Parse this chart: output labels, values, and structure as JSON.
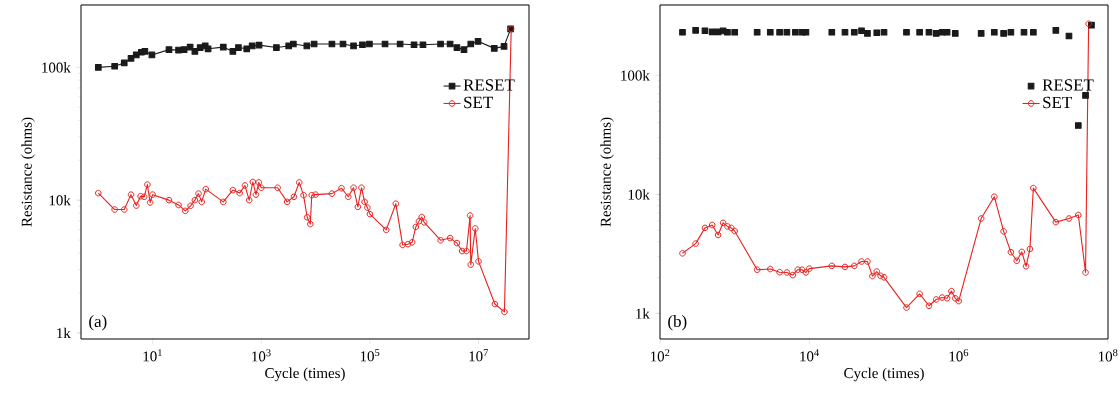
{
  "chart_data": [
    {
      "type": "line",
      "xlabel": "Cycle (times)",
      "ylabel": "Resistance (ohms)",
      "log": "xy",
      "legend": "top right",
      "annotations": [
        "(a)"
      ],
      "xlim": [
        0.48,
        85000000.0
      ],
      "ylim": [
        900,
        295000
      ],
      "xticks": [
        {
          "value": 10,
          "label": "10$^{1}$"
        },
        {
          "value": 1000,
          "label": "10$^{3}$"
        },
        {
          "value": 100000,
          "label": "10$^{5}$"
        },
        {
          "value": 10000000,
          "label": "10$^{7}$"
        }
      ],
      "yticks": [
        {
          "value": 1000,
          "label": "1k"
        },
        {
          "value": 10000,
          "label": "10k"
        },
        {
          "value": 100000,
          "label": "100k"
        }
      ],
      "series": [
        {
          "name": "RESET",
          "marker": "square",
          "color": "#1a1a1a",
          "x": [
            1,
            2,
            3,
            4,
            5,
            6.2,
            7.2,
            9.7,
            20,
            30,
            38,
            49,
            60,
            75,
            93,
            105,
            200,
            300,
            380,
            540,
            680,
            910,
            1900,
            3200,
            3900,
            6900,
            9400,
            20000,
            32000,
            50000,
            73000,
            98000,
            190000,
            360000,
            650000,
            950000,
            2000000,
            3000000,
            4000000,
            5400000,
            7200000,
            9800000,
            19500000,
            29500000,
            39000000
          ],
          "values": [
            100000,
            102000,
            108000,
            117000,
            124000,
            130000,
            132000,
            124000,
            136000,
            135000,
            136000,
            142000,
            132000,
            141000,
            145000,
            138000,
            142000,
            132000,
            141000,
            138000,
            145000,
            147000,
            141000,
            145000,
            150000,
            145000,
            150000,
            150000,
            150000,
            145000,
            148000,
            150000,
            150000,
            150000,
            148000,
            148000,
            150000,
            150000,
            141000,
            136000,
            150000,
            157000,
            139000,
            144000,
            195000
          ]
        },
        {
          "name": "SET",
          "marker": "circle",
          "color": "#e8201e",
          "x": [
            1,
            2,
            3,
            4,
            5,
            6,
            7,
            8,
            9,
            10,
            20,
            30,
            40,
            50,
            60,
            70,
            80,
            95,
            200,
            300,
            400,
            500,
            600,
            700,
            800,
            900,
            1000,
            2000,
            3000,
            4000,
            5000,
            6000,
            7000,
            8000,
            8500,
            10000,
            20000,
            30000,
            40000,
            50000,
            60000,
            70000,
            80000,
            90000,
            100000,
            200000,
            300000,
            400000,
            500000,
            600000,
            700000,
            800000,
            900000,
            1000000,
            2000000,
            3000000,
            4000000,
            5000000,
            6000000,
            7000000,
            7200000,
            8700000,
            10000000,
            20000000,
            30000000,
            40000000
          ],
          "values": [
            11300,
            8500,
            8500,
            11000,
            9100,
            10700,
            10600,
            13100,
            9600,
            11000,
            10000,
            9200,
            8300,
            9060,
            10000,
            11200,
            9700,
            12100,
            9700,
            11900,
            11300,
            12900,
            10000,
            13700,
            11000,
            13600,
            12400,
            12400,
            9700,
            10600,
            13600,
            10900,
            7430,
            6600,
            10900,
            11000,
            11200,
            12300,
            10600,
            12400,
            8900,
            12400,
            9700,
            8780,
            7850,
            5970,
            9400,
            4600,
            4660,
            4810,
            6280,
            6930,
            7470,
            6800,
            4990,
            5180,
            4750,
            4140,
            4140,
            7660,
            3270,
            6120,
            3460,
            1650,
            1440,
            195000
          ]
        }
      ]
    },
    {
      "type": "line",
      "xlabel": "Cycle (times)",
      "ylabel": "Resistance (ohms)",
      "log": "xy",
      "legend": "top right",
      "annotations": [
        "(b)"
      ],
      "xlim": [
        100,
        100000000
      ],
      "ylim": [
        610,
        390000
      ],
      "xticks": [
        {
          "value": 100,
          "label": "10$^{2}$"
        },
        {
          "value": 10000,
          "label": "10$^{4}$"
        },
        {
          "value": 1000000,
          "label": "10$^{6}$"
        },
        {
          "value": 100000000,
          "label": "10$^{8}$"
        }
      ],
      "yticks": [
        {
          "value": 1000,
          "label": "1k"
        },
        {
          "value": 10000,
          "label": "10k"
        },
        {
          "value": 100000,
          "label": "100k"
        }
      ],
      "series": [
        {
          "name": "RESET",
          "type": "scatter",
          "marker": "square",
          "color": "#1a1a1a",
          "x": [
            200,
            300,
            400,
            500,
            600,
            700,
            800,
            1000,
            2000,
            3000,
            4000,
            5000,
            6500,
            8000,
            9000,
            20000,
            30000,
            40000,
            50000,
            60000,
            80000,
            100000,
            200000,
            300000,
            400000,
            500000,
            600000,
            700000,
            900000,
            2000000,
            3000000,
            4000000,
            5000000,
            7500000,
            10000000,
            20000000,
            30000000,
            40000000,
            50000000,
            60000000
          ],
          "values": [
            230000,
            239000,
            237000,
            232000,
            232000,
            236000,
            230000,
            230000,
            230000,
            230000,
            230000,
            230000,
            230000,
            230000,
            230000,
            230000,
            230000,
            230000,
            237000,
            225000,
            228000,
            230000,
            230000,
            230000,
            230000,
            225000,
            230000,
            230000,
            225000,
            225000,
            230000,
            225000,
            230000,
            230000,
            230000,
            239000,
            214000,
            37900,
            67900,
            264000
          ]
        },
        {
          "name": "SET",
          "marker": "circle",
          "color": "#e8201e",
          "x": [
            200,
            300,
            400,
            500,
            600,
            700,
            800,
            900,
            1000,
            2000,
            3000,
            4000,
            5000,
            6000,
            7000,
            8000,
            9000,
            10000,
            20000,
            30000,
            40000,
            50000,
            60000,
            70000,
            80000,
            90000,
            100000,
            200000,
            300000,
            400000,
            500000,
            600000,
            700000,
            800000,
            900000,
            1000000,
            2000000,
            3000000,
            4000000,
            5000000,
            6000000,
            7000000,
            8000000,
            9000000,
            10000000,
            20000000,
            30000000,
            40000000,
            50000000,
            55000000
          ],
          "values": [
            3200,
            3860,
            5230,
            5530,
            4560,
            5770,
            5380,
            5230,
            4920,
            2330,
            2360,
            2220,
            2210,
            2100,
            2330,
            2330,
            2210,
            2380,
            2510,
            2460,
            2510,
            2730,
            2730,
            2060,
            2250,
            2070,
            2010,
            1120,
            1460,
            1160,
            1310,
            1360,
            1340,
            1540,
            1340,
            1270,
            6270,
            9560,
            4890,
            3270,
            2770,
            3290,
            2490,
            3480,
            11300,
            5850,
            6270,
            6710,
            2210,
            271000
          ]
        }
      ]
    }
  ]
}
